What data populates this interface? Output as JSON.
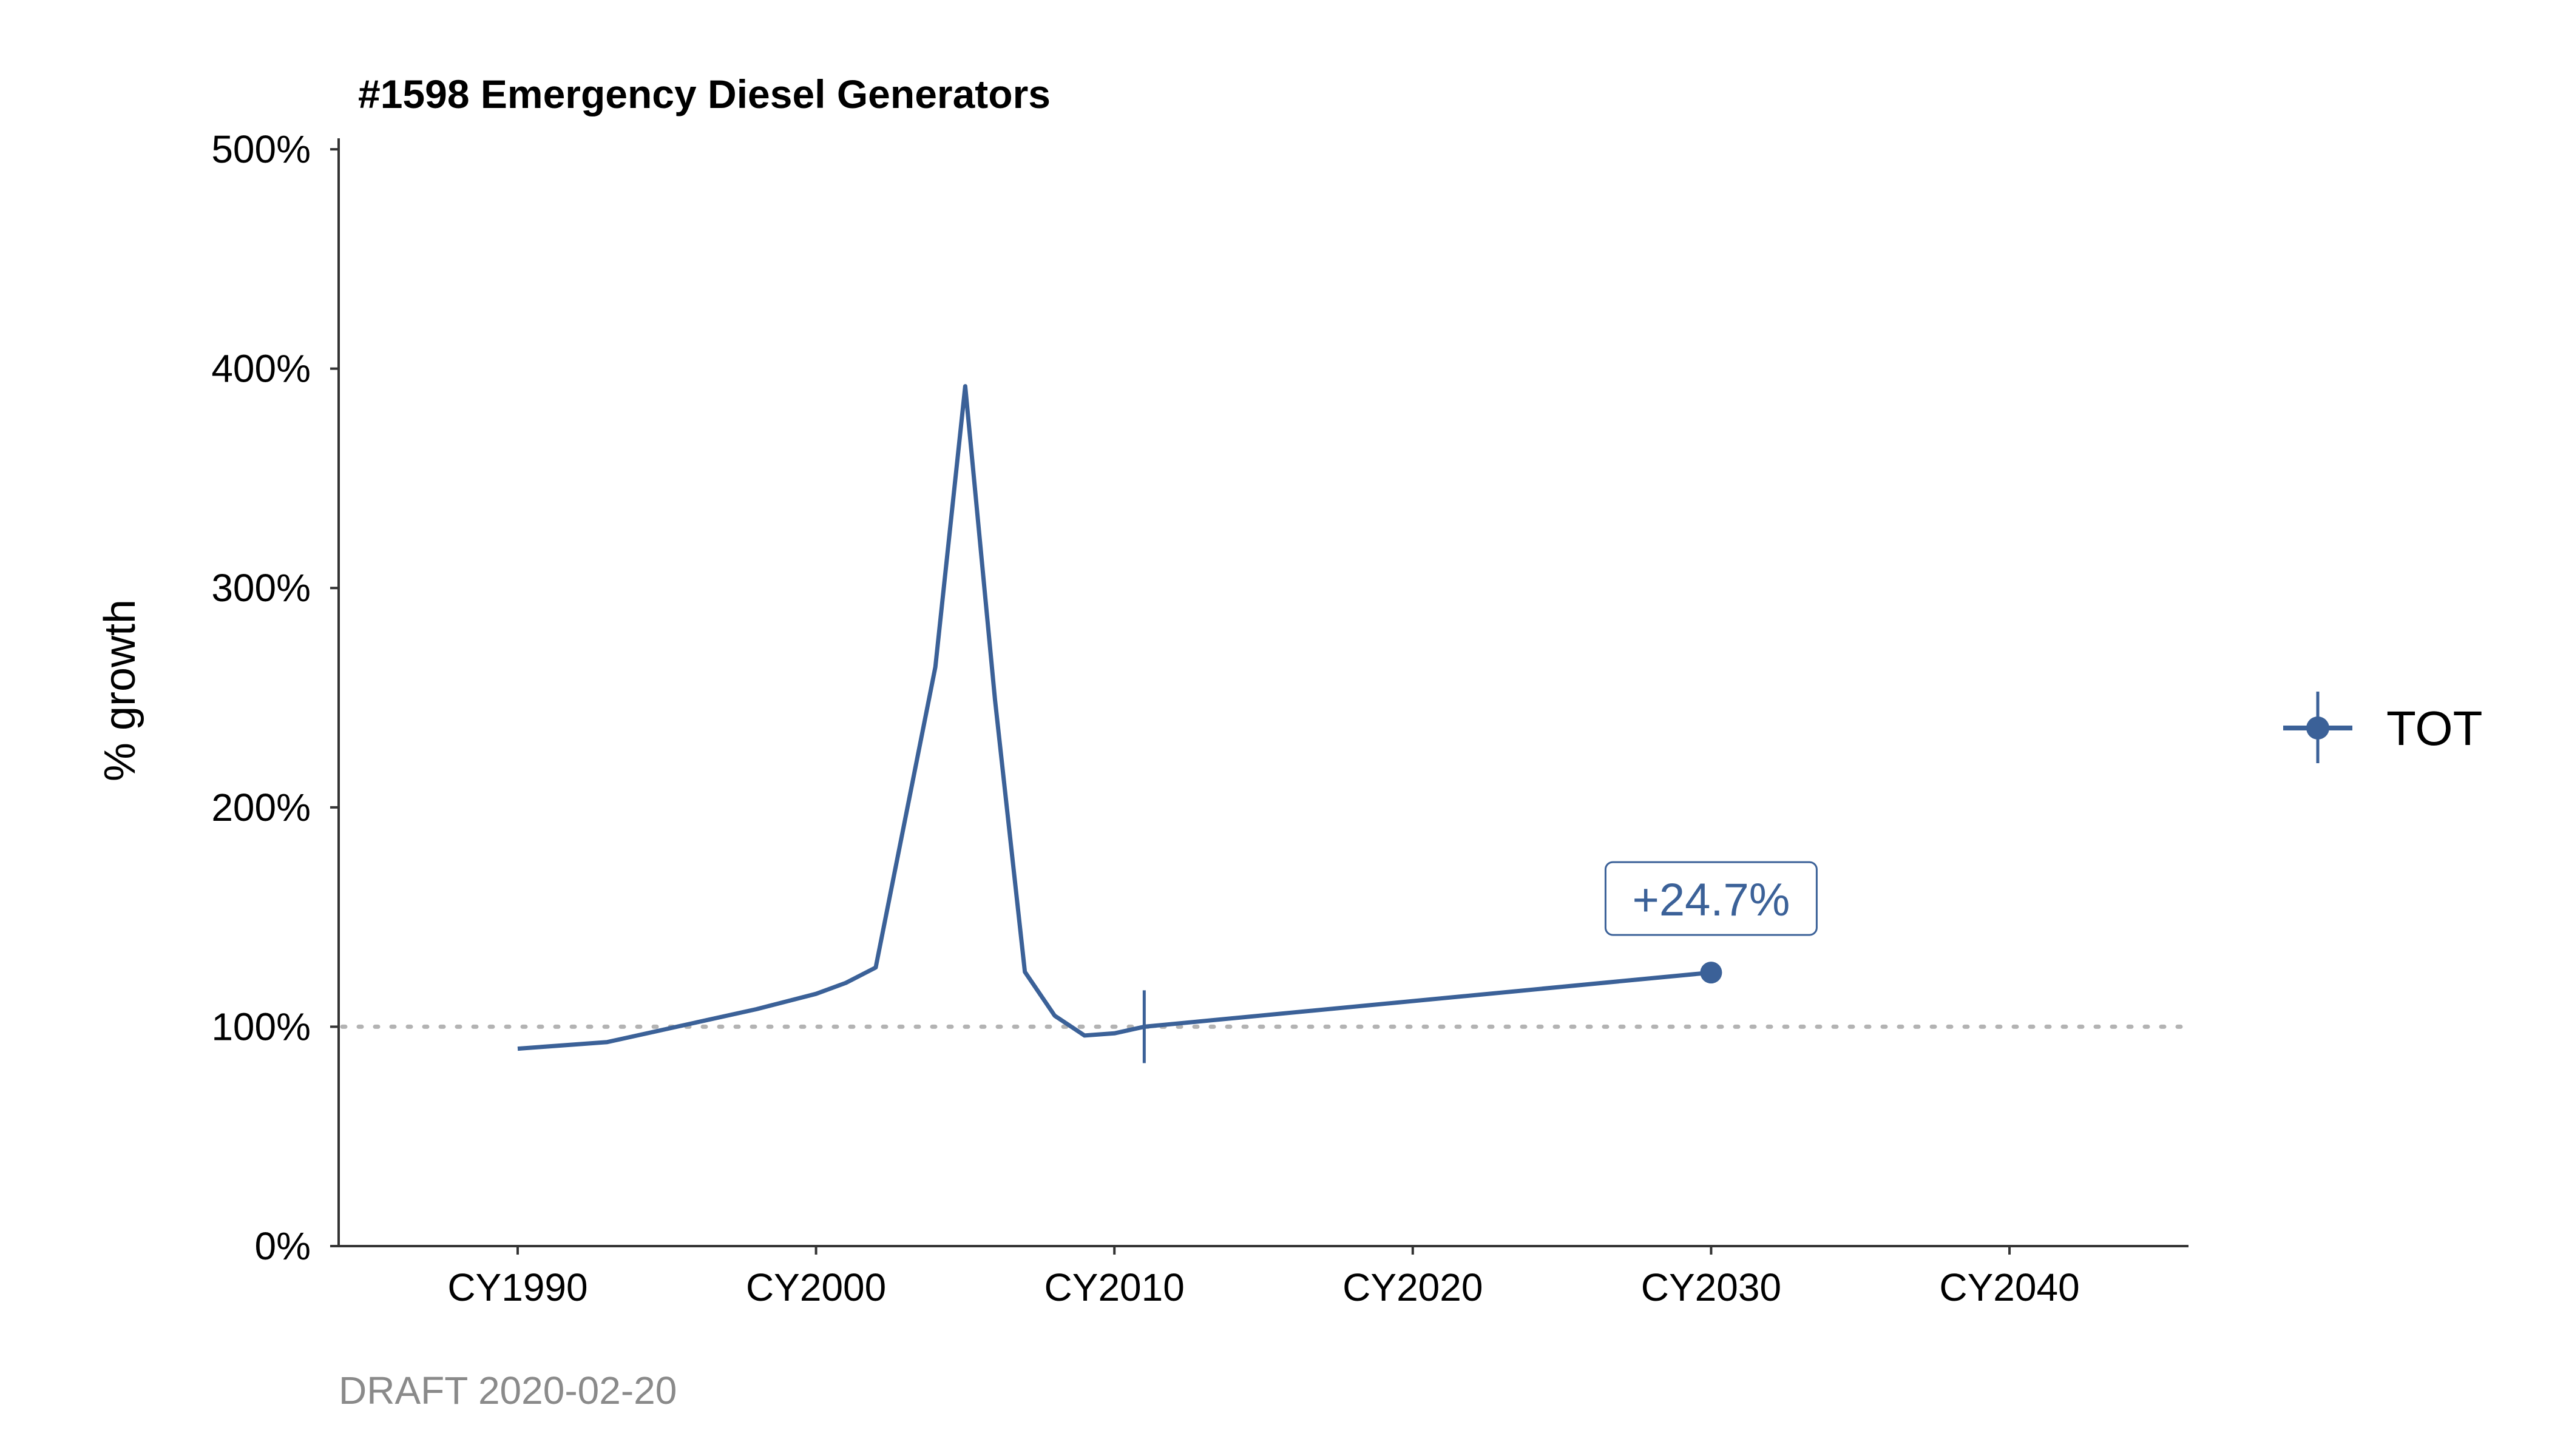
{
  "chart_data": {
    "type": "line",
    "title": "#1598 Emergency Diesel Generators",
    "xlabel": "",
    "ylabel": "% growth",
    "caption": "DRAFT 2020-02-20",
    "xlim": [
      1984,
      2046
    ],
    "ylim": [
      0,
      505
    ],
    "x_ticks": [
      1990,
      2000,
      2010,
      2020,
      2030,
      2040
    ],
    "x_tick_labels": [
      "CY1990",
      "CY2000",
      "CY2010",
      "CY2020",
      "CY2030",
      "CY2040"
    ],
    "y_ticks": [
      0,
      100,
      200,
      300,
      400,
      500
    ],
    "y_tick_labels": [
      "0%",
      "100%",
      "200%",
      "300%",
      "400%",
      "500%"
    ],
    "reference_line": {
      "y": 100,
      "style": "dotted",
      "color": "#b3b3b3"
    },
    "grid": false,
    "legend_position": "right",
    "series": [
      {
        "name": "TOT",
        "color": "#3b6198",
        "x": [
          1990,
          1993,
          1996,
          1998,
          2000,
          2001,
          2002,
          2004,
          2005,
          2006,
          2007,
          2008,
          2009,
          2010,
          2011,
          2030
        ],
        "y": [
          90,
          93,
          102,
          108,
          115,
          120,
          127,
          264,
          392,
          249,
          125,
          105,
          96,
          97,
          100,
          124.7
        ]
      }
    ],
    "base_marker": {
      "x": 2011,
      "y": 100
    },
    "end_marker": {
      "x": 2030,
      "y": 124.7
    },
    "annotations": [
      {
        "x": 2030,
        "y": 124.7,
        "text": "+24.7%"
      }
    ]
  }
}
